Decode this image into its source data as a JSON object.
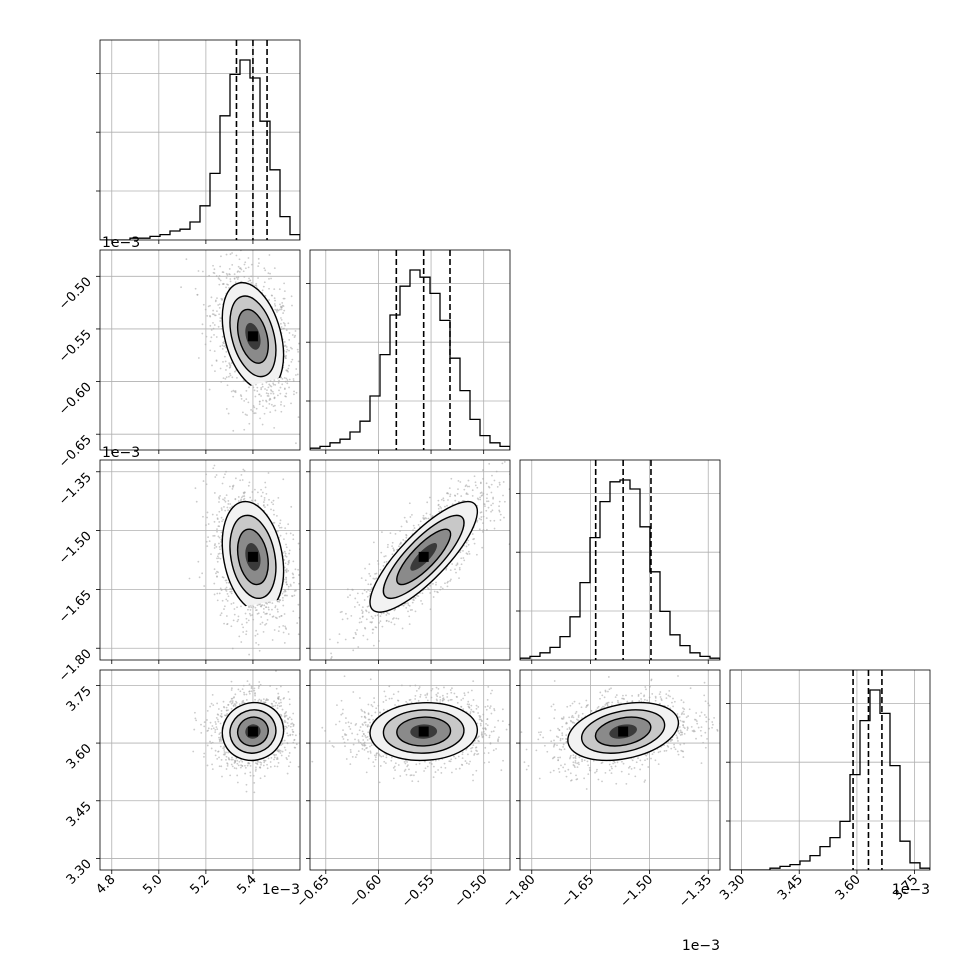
{
  "chart_data": {
    "type": "corner",
    "parameters": [
      {
        "range": [
          4.75,
          5.6
        ],
        "ticks": [
          "4.8",
          "5.0",
          "5.2",
          "5.4"
        ],
        "tick_values": [
          4.8,
          5.0,
          5.2,
          5.4
        ],
        "offset": "1e−3",
        "quantiles": [
          5.33,
          5.4,
          5.46
        ],
        "hist": [
          0,
          0,
          0,
          0.01,
          0.01,
          0.02,
          0.03,
          0.05,
          0.06,
          0.1,
          0.19,
          0.37,
          0.69,
          0.92,
          1.0,
          0.9,
          0.66,
          0.39,
          0.13,
          0.03
        ]
      },
      {
        "range": [
          -0.665,
          -0.475
        ],
        "ticks": [
          "−0.65",
          "−0.60",
          "−0.55",
          "−0.50"
        ],
        "tick_values": [
          -0.65,
          -0.6,
          -0.55,
          -0.5
        ],
        "offset": "",
        "quantiles": [
          -0.583,
          -0.557,
          -0.532
        ],
        "hist": [
          0.01,
          0.02,
          0.04,
          0.06,
          0.1,
          0.16,
          0.3,
          0.53,
          0.75,
          0.91,
          1.0,
          0.96,
          0.87,
          0.72,
          0.51,
          0.33,
          0.17,
          0.08,
          0.04,
          0.02
        ]
      },
      {
        "range": [
          -1.83,
          -1.32
        ],
        "ticks": [
          "−1.80",
          "−1.65",
          "−1.50",
          "−1.35"
        ],
        "tick_values": [
          -1.8,
          -1.65,
          -1.5,
          -1.35
        ],
        "offset": "1e−3",
        "quantiles": [
          -1.637,
          -1.567,
          -1.496
        ],
        "hist": [
          0.01,
          0.02,
          0.04,
          0.07,
          0.13,
          0.24,
          0.43,
          0.68,
          0.88,
          0.99,
          1.0,
          0.95,
          0.74,
          0.49,
          0.27,
          0.14,
          0.08,
          0.04,
          0.02,
          0.01
        ]
      },
      {
        "range": [
          3.27,
          3.79
        ],
        "ticks": [
          "3.30",
          "3.45",
          "3.60",
          "3.75"
        ],
        "tick_values": [
          3.3,
          3.45,
          3.6,
          3.75
        ],
        "offset": "1e−3",
        "quantiles": [
          3.59,
          3.63,
          3.665
        ],
        "hist": [
          0,
          0,
          0,
          0,
          0.01,
          0.02,
          0.03,
          0.05,
          0.08,
          0.13,
          0.18,
          0.27,
          0.53,
          0.83,
          1.0,
          0.87,
          0.58,
          0.16,
          0.04,
          0.01
        ]
      }
    ],
    "row_offsets": [
      "",
      "1e−3",
      "1e−3",
      ""
    ],
    "grid": true,
    "marker_color": "#000000",
    "histogram_color": "#000000",
    "point_color": "#a9a9a9",
    "quantile_linestyle": "dashed"
  }
}
